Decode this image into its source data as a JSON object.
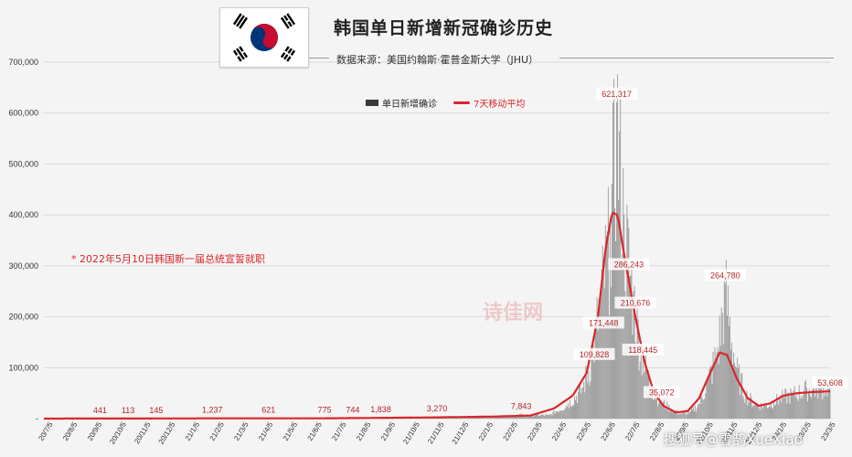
{
  "header": {
    "title": "韩国单日新增新冠确诊历史",
    "source": "数据来源：美国约翰斯·霍普金斯大学（JHU）"
  },
  "note": "* 2022年5月10日韩国新一届总统宣誓就职",
  "watermark": "诗佳网",
  "footer_mark": "搜狐号@雪鹄XueXiao",
  "colors": {
    "bars": "#9a9a9a",
    "line": "#d9262b",
    "label": "#b5252a",
    "grid": "#cfcfcf"
  },
  "chart_data": {
    "type": "bar",
    "title": "韩国单日新增新冠确诊历史",
    "y_ticks": [
      "-",
      "100,000",
      "200,000",
      "300,000",
      "400,000",
      "500,000",
      "600,000",
      "700,000"
    ],
    "ylim": [
      0,
      700000
    ],
    "x_ticks": [
      "20/7/5",
      "20/8/5",
      "20/9/5",
      "20/10/5",
      "20/11/5",
      "20/12/5",
      "21/1/5",
      "21/2/5",
      "21/3/5",
      "21/4/5",
      "21/5/5",
      "21/6/5",
      "21/7/5",
      "21/8/5",
      "21/9/5",
      "21/10/5",
      "21/11/5",
      "21/12/5",
      "22/1/5",
      "22/2/5",
      "22/3/5",
      "22/4/5",
      "22/5/5",
      "22/6/5",
      "22/7/5",
      "22/8/5",
      "22/9/5",
      "22/10/5",
      "22/11/5",
      "22/12/5",
      "23/1/5",
      "23/2/5",
      "23/3/5"
    ],
    "legend": [
      {
        "name": "单日新增确诊",
        "type": "bar"
      },
      {
        "name": "7天移动平均",
        "type": "line"
      }
    ],
    "grid": true,
    "daily_profile": [
      [
        0,
        40
      ],
      [
        30,
        200
      ],
      [
        60,
        441
      ],
      [
        90,
        113
      ],
      [
        120,
        145
      ],
      [
        150,
        900
      ],
      [
        180,
        1237
      ],
      [
        210,
        500
      ],
      [
        240,
        621
      ],
      [
        270,
        500
      ],
      [
        300,
        775
      ],
      [
        330,
        744
      ],
      [
        360,
        1838
      ],
      [
        390,
        1800
      ],
      [
        420,
        3270
      ],
      [
        450,
        2500
      ],
      [
        480,
        4000
      ],
      [
        510,
        7843
      ],
      [
        540,
        7000
      ],
      [
        560,
        30000
      ],
      [
        575,
        60000
      ],
      [
        585,
        120000
      ],
      [
        595,
        250000
      ],
      [
        605,
        380000
      ],
      [
        612,
        621317
      ],
      [
        620,
        400000
      ],
      [
        630,
        250000
      ],
      [
        640,
        120000
      ],
      [
        650,
        60000
      ],
      [
        660,
        35072
      ],
      [
        670,
        20000
      ],
      [
        680,
        10000
      ],
      [
        690,
        12000
      ],
      [
        700,
        30000
      ],
      [
        710,
        80000
      ],
      [
        720,
        140000
      ],
      [
        728,
        264780
      ],
      [
        740,
        100000
      ],
      [
        750,
        50000
      ],
      [
        760,
        30000
      ],
      [
        770,
        25000
      ],
      [
        780,
        35000
      ],
      [
        790,
        45000
      ],
      [
        800,
        50000
      ],
      [
        815,
        60000
      ],
      [
        830,
        65000
      ],
      [
        840,
        70000
      ]
    ],
    "moving_average": [
      [
        0,
        60
      ],
      [
        100,
        200
      ],
      [
        200,
        600
      ],
      [
        300,
        600
      ],
      [
        360,
        1500
      ],
      [
        420,
        2500
      ],
      [
        480,
        4000
      ],
      [
        520,
        6000
      ],
      [
        545,
        20000
      ],
      [
        565,
        45000
      ],
      [
        580,
        90000
      ],
      [
        592,
        200000
      ],
      [
        600,
        330000
      ],
      [
        607,
        405000
      ],
      [
        613,
        400000
      ],
      [
        622,
        300000
      ],
      [
        632,
        200000
      ],
      [
        642,
        110000
      ],
      [
        652,
        50000
      ],
      [
        662,
        25000
      ],
      [
        675,
        12000
      ],
      [
        688,
        15000
      ],
      [
        700,
        40000
      ],
      [
        712,
        90000
      ],
      [
        722,
        130000
      ],
      [
        730,
        125000
      ],
      [
        740,
        80000
      ],
      [
        752,
        40000
      ],
      [
        764,
        25000
      ],
      [
        776,
        30000
      ],
      [
        790,
        45000
      ],
      [
        805,
        50000
      ],
      [
        820,
        52000
      ],
      [
        840,
        53608
      ]
    ],
    "annotations": [
      {
        "text": "441",
        "x": 60,
        "y": 441
      },
      {
        "text": "113",
        "x": 90,
        "y": 113
      },
      {
        "text": "145",
        "x": 120,
        "y": 145
      },
      {
        "text": "1,237",
        "x": 180,
        "y": 1237
      },
      {
        "text": "621",
        "x": 240,
        "y": 621
      },
      {
        "text": "775",
        "x": 300,
        "y": 775
      },
      {
        "text": "744",
        "x": 330,
        "y": 744
      },
      {
        "text": "1,838",
        "x": 360,
        "y": 1838
      },
      {
        "text": "3,270",
        "x": 420,
        "y": 3270
      },
      {
        "text": "7,843",
        "x": 510,
        "y": 7843
      },
      {
        "text": "109,828",
        "x": 588,
        "y": 109828
      },
      {
        "text": "171,448",
        "x": 598,
        "y": 171448
      },
      {
        "text": "621,317",
        "x": 612,
        "y": 621317
      },
      {
        "text": "286,243",
        "x": 625,
        "y": 286243
      },
      {
        "text": "210,676",
        "x": 632,
        "y": 210676
      },
      {
        "text": "118,445",
        "x": 640,
        "y": 118445
      },
      {
        "text": "35,072",
        "x": 660,
        "y": 35072
      },
      {
        "text": "264,780",
        "x": 728,
        "y": 264780
      },
      {
        "text": "53,608",
        "x": 840,
        "y": 53608
      }
    ]
  }
}
